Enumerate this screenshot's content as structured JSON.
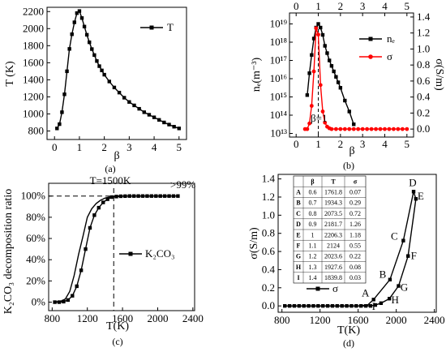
{
  "chart_data": [
    {
      "panel": "(a)",
      "type": "line",
      "xlabel": "β",
      "ylabel": "T (K)",
      "xlim": [
        -0.3,
        5.3
      ],
      "ylim": [
        700,
        2250
      ],
      "xticks": [
        0,
        1,
        2,
        3,
        4,
        5
      ],
      "yticks": [
        800,
        1000,
        1200,
        1400,
        1600,
        1800,
        2000,
        2200
      ],
      "legend": "top-right",
      "series": [
        {
          "name": "T",
          "color": "#000000",
          "x": [
            0.1,
            0.2,
            0.3,
            0.4,
            0.5,
            0.6,
            0.7,
            0.8,
            0.9,
            1.0,
            1.1,
            1.2,
            1.3,
            1.4,
            1.5,
            1.6,
            1.7,
            1.8,
            1.9,
            2.0,
            2.2,
            2.4,
            2.6,
            2.8,
            3.0,
            3.2,
            3.4,
            3.6,
            3.8,
            4.0,
            4.2,
            4.4,
            4.6,
            4.8,
            5.0
          ],
          "y": [
            830,
            880,
            1020,
            1230,
            1500,
            1762,
            1934,
            2074,
            2182,
            2206,
            2124,
            2024,
            1928,
            1840,
            1760,
            1690,
            1620,
            1560,
            1510,
            1460,
            1380,
            1310,
            1250,
            1190,
            1140,
            1100,
            1060,
            1020,
            990,
            960,
            930,
            900,
            875,
            850,
            830
          ]
        }
      ]
    },
    {
      "panel": "(b)",
      "type": "line",
      "xlabel": "β",
      "ylabel_left": "nₑ(m⁻³)",
      "ylabel_right": "σ(S/m)",
      "xticks": [
        0,
        1,
        2,
        3,
        4,
        5
      ],
      "left_yticks": [
        "10¹³",
        "10¹⁴",
        "10¹⁵",
        "10¹⁶",
        "10¹⁷",
        "10¹⁸",
        "10¹⁹"
      ],
      "left_ylim_log10": [
        12.8,
        19.6
      ],
      "right_yticks": [
        "0.0",
        "0.2",
        "0.4",
        "0.6",
        "0.8",
        "1.0",
        "1.2",
        "1.4"
      ],
      "right_ylim": [
        -0.1,
        1.45
      ],
      "annotation": "β=1",
      "legend": "top-right",
      "series": [
        {
          "name": "nₑ",
          "axis": "left",
          "color": "#000000",
          "x": [
            0.5,
            0.6,
            0.7,
            0.8,
            0.9,
            1.0,
            1.1,
            1.2,
            1.3,
            1.4,
            1.5,
            1.6,
            1.7,
            1.8,
            1.9,
            2.0,
            2.2,
            2.4,
            2.6
          ],
          "log10_y": [
            15.1,
            16.3,
            17.3,
            18.2,
            18.8,
            19.0,
            18.8,
            18.4,
            17.8,
            17.4,
            17.0,
            16.7,
            16.4,
            16.1,
            15.8,
            15.5,
            14.8,
            14.2,
            13.5
          ]
        },
        {
          "name": "σ",
          "axis": "right",
          "color": "#ff0000",
          "x": [
            0.4,
            0.5,
            0.6,
            0.7,
            0.8,
            0.9,
            1.0,
            1.1,
            1.2,
            1.3,
            1.4,
            1.5,
            1.6,
            1.8,
            2.0,
            2.2,
            2.4,
            2.6,
            2.8,
            3.0,
            3.2,
            3.4,
            3.6,
            3.8,
            4.0,
            4.2,
            4.4,
            4.6,
            4.8,
            5.0
          ],
          "y": [
            0.0,
            0.0,
            0.07,
            0.29,
            0.72,
            1.26,
            1.18,
            0.55,
            0.22,
            0.08,
            0.03,
            0.01,
            0.0,
            0.0,
            0.0,
            0.0,
            0.0,
            0.0,
            0.0,
            0.0,
            0.0,
            0.0,
            0.0,
            0.0,
            0.0,
            0.0,
            0.0,
            0.0,
            0.0,
            0.0
          ]
        }
      ]
    },
    {
      "panel": "(c)",
      "type": "line",
      "xlabel": "T(K)",
      "ylabel": "K₂CO₃ decomposition ratio",
      "xlim": [
        760,
        2420
      ],
      "ylim": [
        -8,
        112
      ],
      "xticks": [
        800,
        1200,
        1600,
        2000,
        2400
      ],
      "yticks": [
        "0%",
        "20%",
        "40%",
        "60%",
        "80%",
        "100%"
      ],
      "annotations": [
        "T=1500K",
        ">99%"
      ],
      "legend": "middle-right",
      "series": [
        {
          "name": "K₂CO₃",
          "color": "#000000",
          "x": [
            830,
            880,
            930,
            980,
            1030,
            1080,
            1130,
            1180,
            1230,
            1280,
            1330,
            1380,
            1430,
            1480,
            1530,
            1580,
            1630,
            1680,
            1730,
            1780,
            1830,
            1880,
            1930,
            1980,
            2030,
            2080,
            2130,
            2180,
            2230
          ],
          "y": [
            0,
            0,
            0.5,
            2,
            6,
            15,
            30,
            50,
            70,
            82,
            89,
            94,
            97,
            99,
            99.5,
            99.8,
            99.9,
            100,
            100,
            100,
            100,
            100,
            100,
            100,
            100,
            100,
            100,
            100,
            100
          ]
        }
      ],
      "envelope_curve": {
        "x": [
          830,
          900,
          950,
          1000,
          1050,
          1100,
          1150,
          1200,
          1250,
          1300,
          1350,
          1400,
          1450,
          1500,
          1550,
          1600
        ],
        "y": [
          0,
          1,
          3,
          10,
          25,
          45,
          62,
          80,
          88,
          93,
          96,
          98,
          99,
          99.5,
          100,
          100
        ]
      }
    },
    {
      "panel": "(d)",
      "type": "line",
      "xlabel": "T(K)",
      "ylabel": "σ(S/m)",
      "xlim": [
        760,
        2420
      ],
      "ylim": [
        -0.07,
        1.45
      ],
      "xticks": [
        800,
        1200,
        1600,
        2000,
        2400
      ],
      "yticks": [
        "0.0",
        "0.2",
        "0.4",
        "0.6",
        "0.8",
        "1.0",
        "1.2",
        "1.4"
      ],
      "legend": "bottom-left",
      "series": [
        {
          "name": "σ",
          "color": "#000000",
          "x": [
            830,
            880,
            930,
            980,
            1030,
            1080,
            1130,
            1180,
            1230,
            1280,
            1330,
            1380,
            1430,
            1480,
            1530,
            1580,
            1630,
            1680,
            1730,
            1780,
            1840,
            1928,
            2024,
            2124,
            2206
          ],
          "y": [
            0,
            0,
            0,
            0,
            0,
            0,
            0,
            0,
            0,
            0,
            0,
            0,
            0,
            0,
            0,
            0,
            0,
            0,
            0,
            0.01,
            0.03,
            0.08,
            0.22,
            0.55,
            1.18
          ]
        }
      ],
      "upper_branch": {
        "x": [
          830,
          1000,
          1200,
          1400,
          1600,
          1700,
          1762,
          1934,
          2074,
          2182
        ],
        "y": [
          0,
          0,
          0,
          0,
          0,
          0.01,
          0.07,
          0.29,
          0.72,
          1.26
        ]
      },
      "point_labels": [
        {
          "label": "A",
          "T": 1761.8,
          "sigma": 0.07
        },
        {
          "label": "B",
          "T": 1934.3,
          "sigma": 0.29
        },
        {
          "label": "C",
          "T": 2073.5,
          "sigma": 0.72
        },
        {
          "label": "D",
          "T": 2181.7,
          "sigma": 1.26
        },
        {
          "label": "E",
          "T": 2206.3,
          "sigma": 1.18
        },
        {
          "label": "F",
          "T": 2124,
          "sigma": 0.55
        },
        {
          "label": "G",
          "T": 2023.6,
          "sigma": 0.22
        },
        {
          "label": "H",
          "T": 1927.6,
          "sigma": 0.08
        },
        {
          "label": "I",
          "T": 1839.8,
          "sigma": 0.03
        }
      ],
      "table": {
        "headers": [
          "",
          "β",
          "T",
          "σ"
        ],
        "rows": [
          [
            "A",
            "0.6",
            "1761.8",
            "0.07"
          ],
          [
            "B",
            "0.7",
            "1934.3",
            "0.29"
          ],
          [
            "C",
            "0.8",
            "2073.5",
            "0.72"
          ],
          [
            "D",
            "0.9",
            "2181.7",
            "1.26"
          ],
          [
            "E",
            "1",
            "2206.3",
            "1.18"
          ],
          [
            "F",
            "1.1",
            "2124",
            "0.55"
          ],
          [
            "G",
            "1.2",
            "2023.6",
            "0.22"
          ],
          [
            "H",
            "1.3",
            "1927.6",
            "0.08"
          ],
          [
            "I",
            "1.4",
            "1839.8",
            "0.03"
          ]
        ]
      }
    }
  ],
  "captions": [
    "(a)",
    "(b)",
    "(c)",
    "(d)"
  ]
}
